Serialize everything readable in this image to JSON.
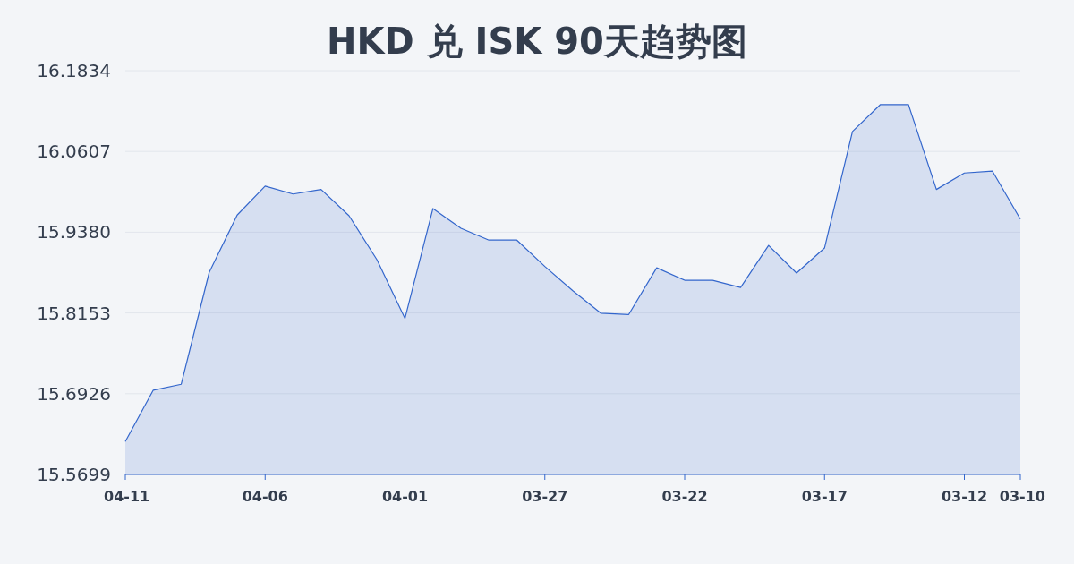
{
  "chart_data": {
    "type": "area",
    "title": "HKD 兑 ISK 90天趋势图",
    "categories": [
      "04-11",
      null,
      null,
      null,
      null,
      "04-06",
      null,
      null,
      null,
      null,
      "04-01",
      null,
      null,
      null,
      null,
      "03-27",
      null,
      null,
      null,
      null,
      "03-22",
      null,
      null,
      null,
      null,
      "03-17",
      null,
      null,
      null,
      null,
      "03-12",
      null,
      "03-10"
    ],
    "series": [
      {
        "color": "#3366cc",
        "values": [
          15.62,
          15.698,
          15.707,
          15.877,
          15.964,
          16.008,
          15.996,
          16.003,
          15.963,
          15.896,
          15.807,
          15.974,
          15.944,
          15.926,
          15.926,
          15.886,
          15.849,
          15.815,
          15.813,
          15.884,
          15.865,
          15.865,
          15.854,
          15.918,
          15.876,
          15.914,
          16.091,
          16.132,
          16.132,
          16.003,
          16.028,
          16.031,
          15.958
        ]
      }
    ],
    "ylim": [
      15.5699,
      16.1834
    ],
    "yticks": [
      {
        "value": 15.5699,
        "label": "15.5699"
      },
      {
        "value": 15.6926,
        "label": "15.6926"
      },
      {
        "value": 15.8153,
        "label": "15.8153"
      },
      {
        "value": 15.938,
        "label": "15.9380"
      },
      {
        "value": 16.0607,
        "label": "16.0607"
      },
      {
        "value": 16.1834,
        "label": "16.1834"
      }
    ],
    "grid": "y",
    "marker": "none",
    "line_style": "solid"
  }
}
